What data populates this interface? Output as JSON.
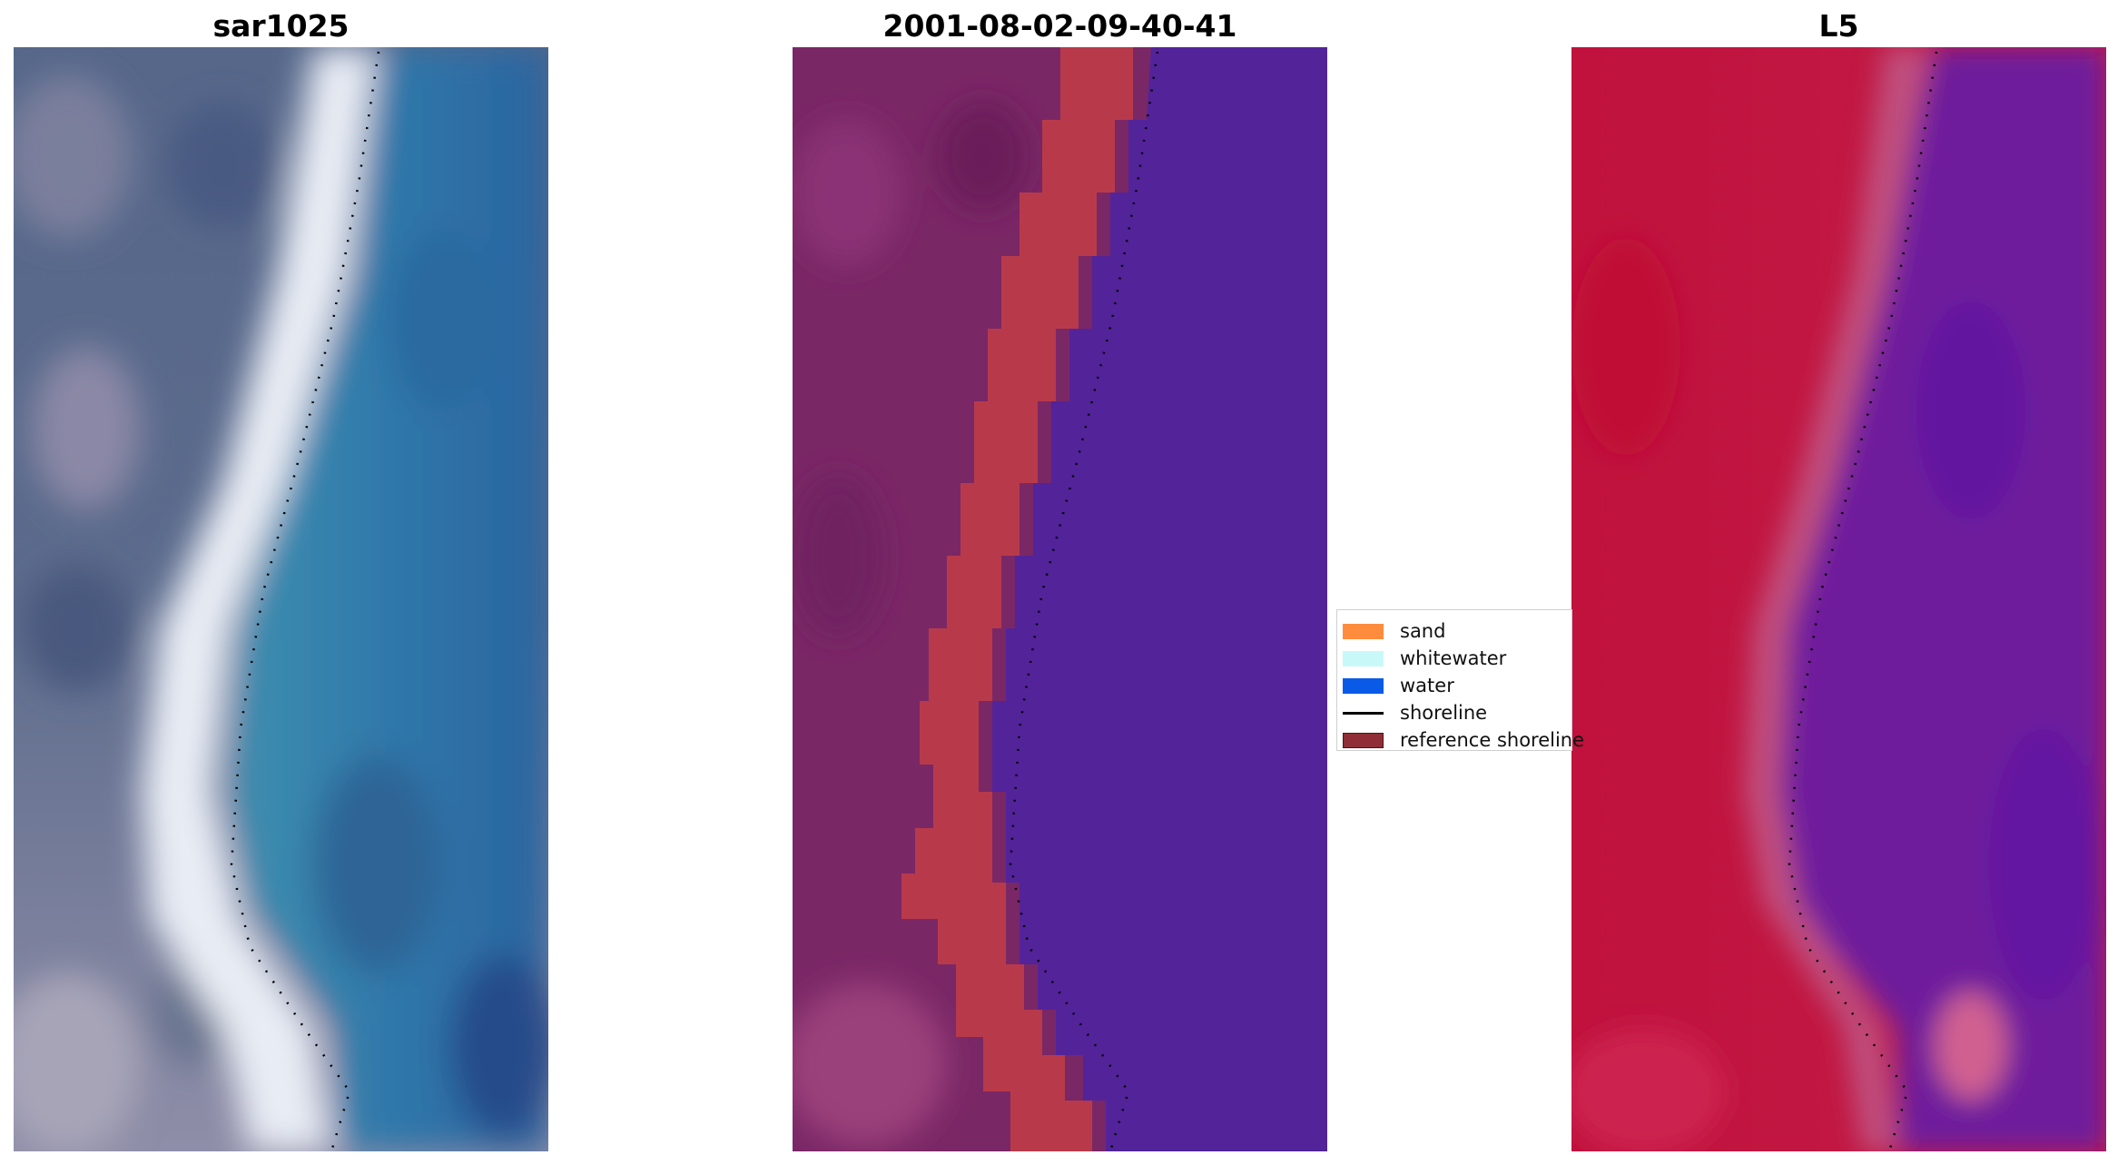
{
  "panels": [
    {
      "title": "sar1025"
    },
    {
      "title": "2001-08-02-09-40-41"
    },
    {
      "title": "L5"
    }
  ],
  "legend": {
    "items": [
      {
        "label": "sand",
        "kind": "patch",
        "color": "#ff8c3c"
      },
      {
        "label": "whitewater",
        "kind": "patch",
        "color": "#c8f8f8"
      },
      {
        "label": "water",
        "kind": "patch",
        "color": "#0a5ae8"
      },
      {
        "label": "shoreline",
        "kind": "line",
        "color": "#000000"
      },
      {
        "label": "reference shoreline",
        "kind": "patch",
        "color": "#8f2e36"
      }
    ]
  },
  "colors": {
    "land_grey": "#5e6f8e",
    "beach_white": "#eef1f5",
    "water_blue": "#2f72a6",
    "class_land": "#7a2766",
    "class_band": "#b83a4a",
    "class_water": "#53239a",
    "index_red": "#c01840",
    "index_purple": "#6c199e"
  }
}
